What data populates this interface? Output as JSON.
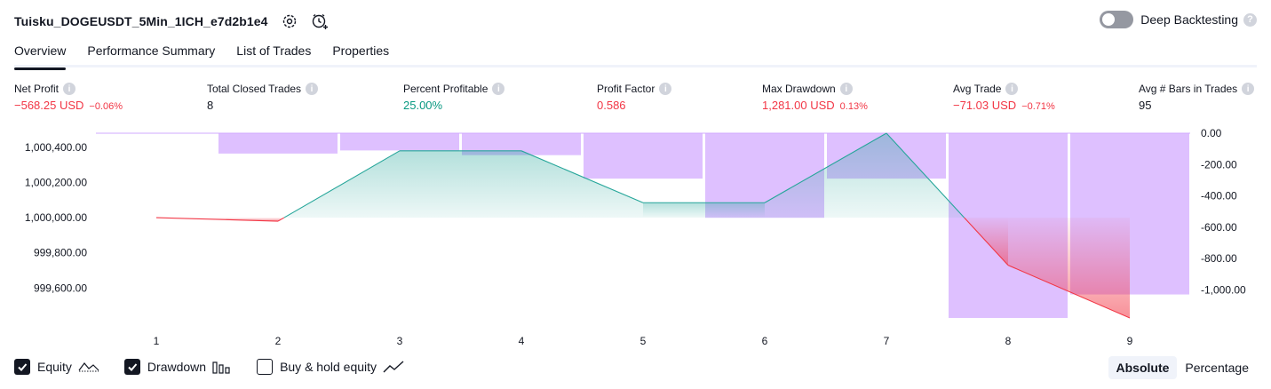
{
  "header": {
    "title": "Tuisku_DOGEUSDT_5Min_1ICH_e7d2b1e4",
    "settings_icon": "gear-icon",
    "alert_icon": "alarm-plus-icon"
  },
  "deep_backtesting": {
    "label": "Deep Backtesting",
    "enabled": false
  },
  "tabs": [
    {
      "label": "Overview",
      "active": true
    },
    {
      "label": "Performance Summary",
      "active": false
    },
    {
      "label": "List of Trades",
      "active": false
    },
    {
      "label": "Properties",
      "active": false
    }
  ],
  "metrics": [
    {
      "label": "Net Profit",
      "value": "−568.25 USD",
      "pct": "−0.06%",
      "tone": "neg"
    },
    {
      "label": "Total Closed Trades",
      "value": "8",
      "pct": "",
      "tone": "neutral"
    },
    {
      "label": "Percent Profitable",
      "value": "25.00%",
      "pct": "",
      "tone": "pos"
    },
    {
      "label": "Profit Factor",
      "value": "0.586",
      "pct": "",
      "tone": "neg"
    },
    {
      "label": "Max Drawdown",
      "value": "1,281.00 USD",
      "pct": "0.13%",
      "tone": "neg"
    },
    {
      "label": "Avg Trade",
      "value": "−71.03 USD",
      "pct": "−0.71%",
      "tone": "neg"
    },
    {
      "label": "Avg # Bars in Trades",
      "value": "95",
      "pct": "",
      "tone": "neutral"
    }
  ],
  "chart_data": {
    "type": "line",
    "x": [
      1,
      2,
      3,
      4,
      5,
      6,
      7,
      8,
      9
    ],
    "series": [
      {
        "name": "Equity",
        "axis": "left",
        "values": [
          1000000,
          999980,
          1000380,
          1000380,
          1000085,
          1000085,
          1000480,
          999730,
          999430
        ]
      },
      {
        "name": "Drawdown",
        "axis": "right",
        "type": "bar",
        "values": [
          0,
          -130,
          -110,
          -140,
          -290,
          -540,
          -290,
          -1180,
          -1030
        ]
      }
    ],
    "y_left": {
      "ticks": [
        "1,000,400.00",
        "1,000,200.00",
        "1,000,000.00",
        "999,800.00",
        "999,600.00"
      ],
      "tick_values": [
        1000400,
        1000200,
        1000000,
        999800,
        999600
      ],
      "range": [
        999430,
        1000480
      ]
    },
    "y_right": {
      "ticks": [
        "0.00",
        "-200.00",
        "-400.00",
        "-600.00",
        "-800.00",
        "-1,000.00"
      ],
      "tick_values": [
        0,
        -200,
        -400,
        -600,
        -800,
        -1000
      ],
      "range": [
        -1180,
        0
      ]
    },
    "baseline": 1000000,
    "colors": {
      "gain": "#26a69a",
      "loss": "#f23645",
      "drawdown": "#d1a8ff"
    }
  },
  "legend": [
    {
      "label": "Equity",
      "checked": true,
      "icon": "equity-line-icon"
    },
    {
      "label": "Drawdown",
      "checked": true,
      "icon": "drawdown-bars-icon"
    },
    {
      "label": "Buy & hold equity",
      "checked": false,
      "icon": "buy-hold-line-icon"
    }
  ],
  "modes": [
    {
      "label": "Absolute",
      "active": true
    },
    {
      "label": "Percentage",
      "active": false
    }
  ]
}
